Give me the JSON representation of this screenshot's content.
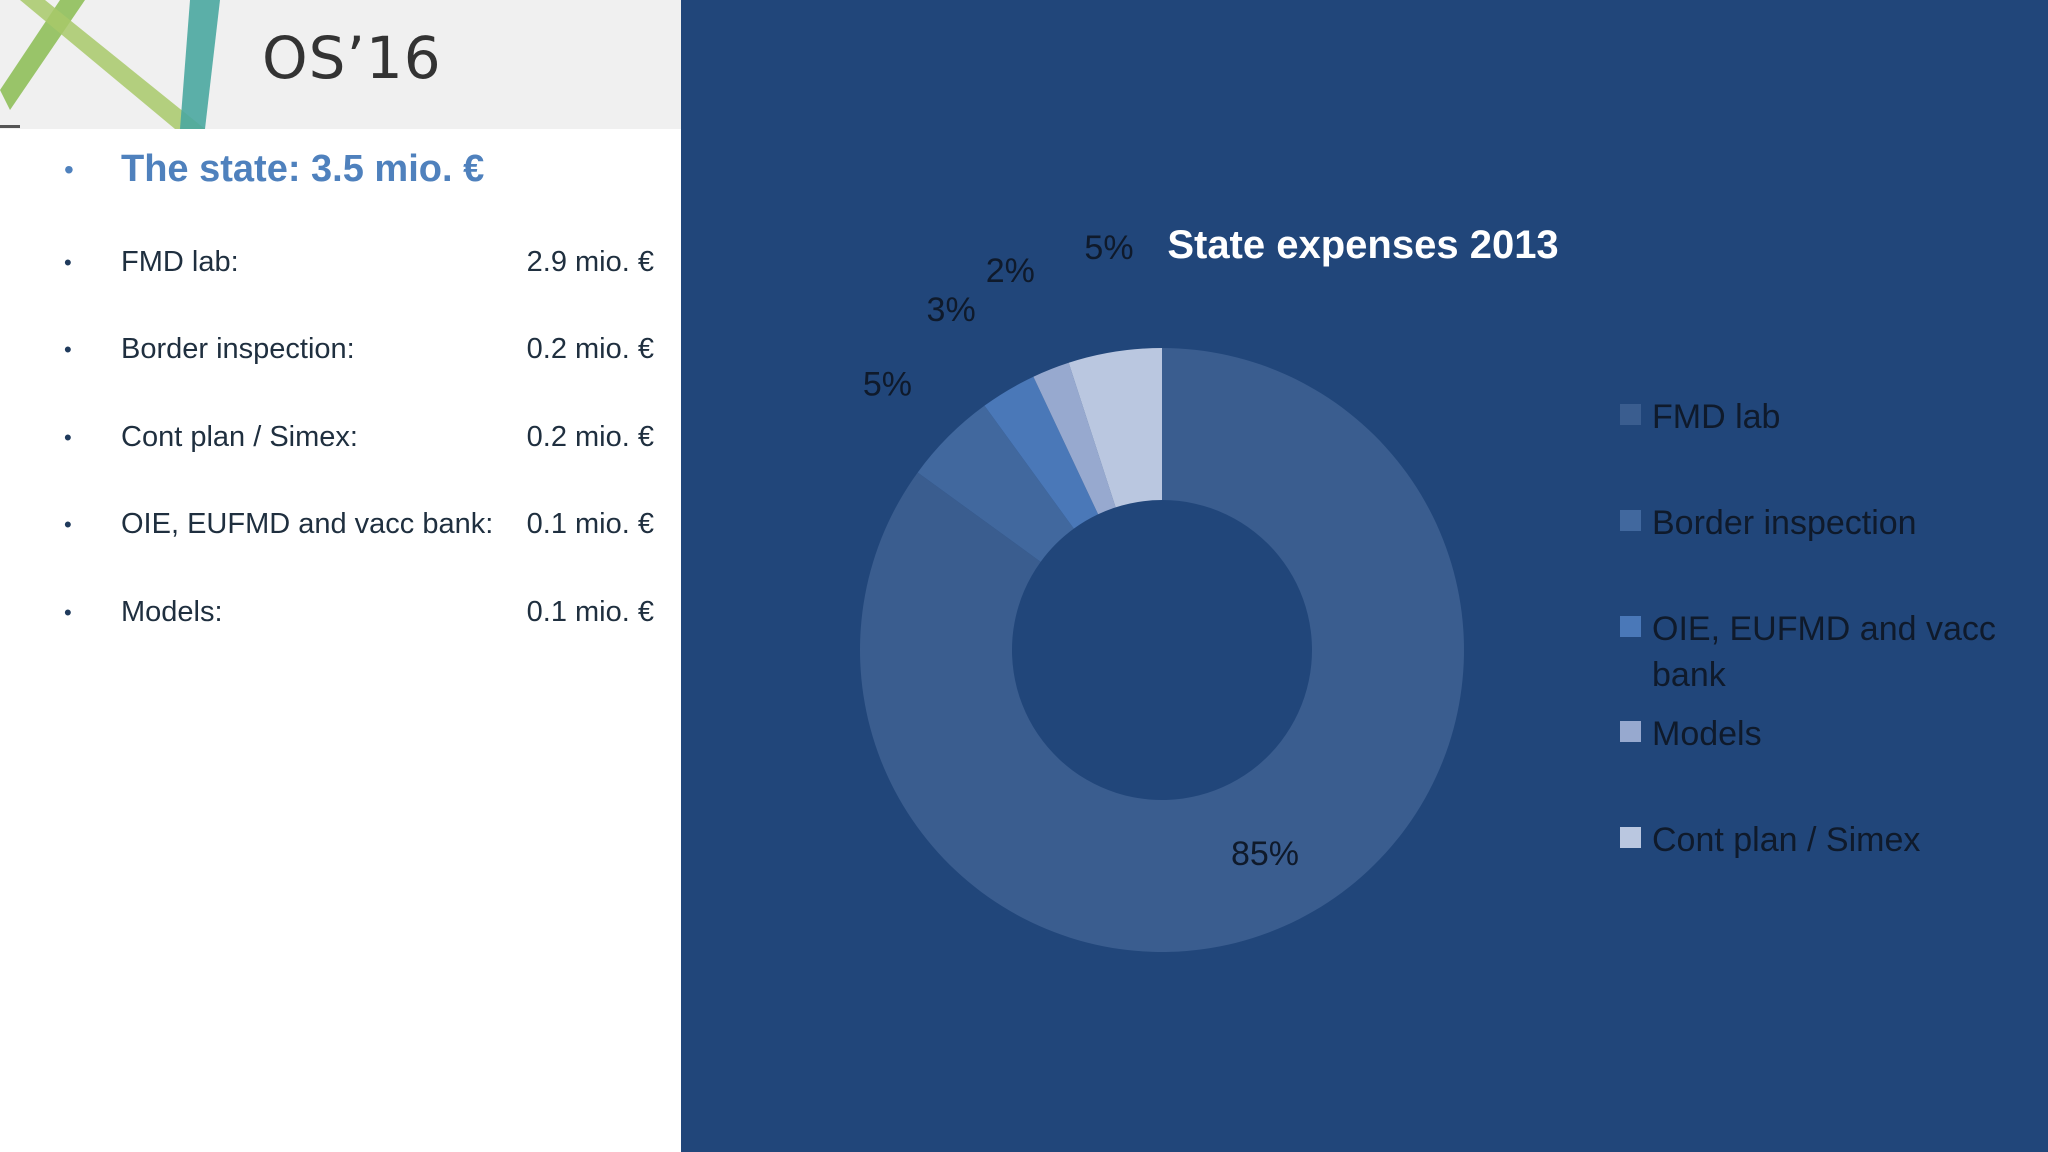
{
  "header": {
    "logo_text": "OS’16"
  },
  "left": {
    "head": {
      "label": "The state: 3.5 mio. €"
    },
    "items": [
      {
        "label": "FMD lab:",
        "value": "2.9 mio. €"
      },
      {
        "label": "Border inspection:",
        "value": "0.2 mio. €"
      },
      {
        "label": "Cont plan / Simex:",
        "value": "0.2 mio. €"
      },
      {
        "label": "OIE, EUFMD and vacc bank:",
        "value": "0.1 mio. €"
      },
      {
        "label": "Models:",
        "value": "0.1 mio. €"
      }
    ],
    "bullet_char": "•"
  },
  "colors": {
    "panel_bg": "#21467a",
    "accent": "#4f81bd"
  },
  "chart_data": {
    "type": "pie",
    "subtype": "donut",
    "title": "State expenses 2013",
    "series": [
      {
        "name": "FMD lab",
        "value": 85,
        "label": "85%",
        "color": "#3a5d8f"
      },
      {
        "name": "Border inspection",
        "value": 5,
        "label": "5%",
        "color": "#41689e"
      },
      {
        "name": "OIE, EUFMD and vacc bank",
        "value": 3,
        "label": "3%",
        "color": "#4a78b8"
      },
      {
        "name": "Models",
        "value": 2,
        "label": "2%",
        "color": "#97a9cf"
      },
      {
        "name": "Cont plan / Simex",
        "value": 5,
        "label": "5%",
        "color": "#bac7e0"
      }
    ],
    "legend_position": "right"
  }
}
